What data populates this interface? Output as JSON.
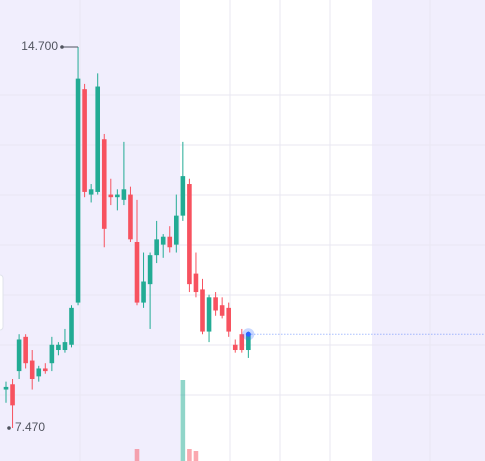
{
  "chart_data": {
    "type": "candlestick",
    "open": [
      8.2,
      8.3,
      8.55,
      9.2,
      8.75,
      8.45,
      8.6,
      8.7,
      8.95,
      8.95,
      9.05,
      9.85,
      13.9,
      11.9,
      11.95,
      12.95,
      11.9,
      11.85,
      11.8,
      11.9,
      11.0,
      9.85,
      10.2,
      10.75,
      10.95,
      11.1,
      10.95,
      11.5,
      12.1,
      10.4,
      10.1,
      9.3,
      9.95,
      9.8,
      9.75,
      9.05,
      9.25,
      8.95
    ],
    "high": [
      8.35,
      8.4,
      9.25,
      9.25,
      8.95,
      8.65,
      8.7,
      9.2,
      9.1,
      9.35,
      9.8,
      14.7,
      14.0,
      12.1,
      14.2,
      13.05,
      12.2,
      12.0,
      12.9,
      12.05,
      11.8,
      10.8,
      10.8,
      11.4,
      11.15,
      11.3,
      11.9,
      12.9,
      12.2,
      10.8,
      10.3,
      10.0,
      10.05,
      9.95,
      9.85,
      9.15,
      9.35,
      9.3
    ],
    "low": [
      7.95,
      7.47,
      8.4,
      8.6,
      8.2,
      8.35,
      8.5,
      8.55,
      8.85,
      8.9,
      9.0,
      9.8,
      11.85,
      11.75,
      11.9,
      10.9,
      11.7,
      11.6,
      11.7,
      11.0,
      9.8,
      9.75,
      9.35,
      10.6,
      10.7,
      10.8,
      10.8,
      11.4,
      10.05,
      9.95,
      9.25,
      9.1,
      9.6,
      9.55,
      9.2,
      8.9,
      8.9,
      8.8
    ],
    "close": [
      8.25,
      7.9,
      9.15,
      8.7,
      8.4,
      8.6,
      8.55,
      9.05,
      9.05,
      9.1,
      9.75,
      14.1,
      11.95,
      12.0,
      13.95,
      11.25,
      11.85,
      11.9,
      12.0,
      11.05,
      9.85,
      10.25,
      10.75,
      11.05,
      11.1,
      10.9,
      11.5,
      12.25,
      10.2,
      10.05,
      9.3,
      9.95,
      9.7,
      9.6,
      9.3,
      8.95,
      8.95,
      9.25
    ],
    "volume": [
      null,
      null,
      null,
      null,
      null,
      null,
      null,
      null,
      null,
      null,
      null,
      null,
      null,
      null,
      null,
      null,
      null,
      null,
      null,
      null,
      12,
      null,
      null,
      null,
      null,
      null,
      null,
      81,
      12,
      10,
      null,
      null,
      null,
      null,
      null,
      null,
      null,
      null
    ],
    "volume_ylim": [
      0,
      100
    ],
    "up_color": "#22ab94",
    "down_color": "#f7525f",
    "ylim": [
      6.844,
      15.592
    ],
    "high_label": {
      "value": 14.7,
      "label": "14.700"
    },
    "low_label": {
      "value": 7.47,
      "label": "7.470"
    },
    "last_price_color": "#2962ff"
  }
}
